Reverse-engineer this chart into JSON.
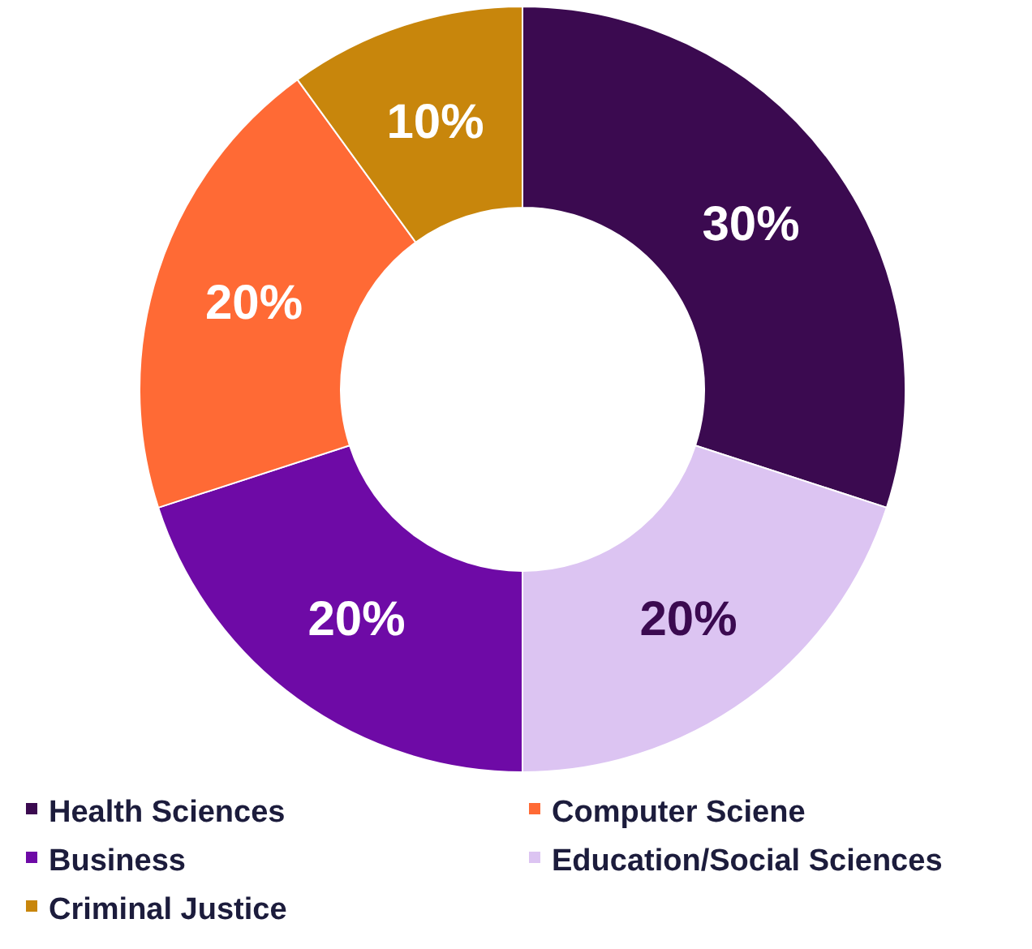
{
  "chart_data": {
    "type": "donut",
    "categories": [
      "Health Sciences",
      "Education/Social Sciences",
      "Business",
      "Computer Sciene",
      "Criminal Justice"
    ],
    "values": [
      30,
      20,
      20,
      20,
      10
    ],
    "colors": [
      "#3b0a50",
      "#dcc4f2",
      "#6e0aa6",
      "#ff6a35",
      "#c8860c"
    ],
    "value_labels": [
      "30%",
      "20%",
      "20%",
      "20%",
      "10%"
    ],
    "legend": "bottom"
  }
}
